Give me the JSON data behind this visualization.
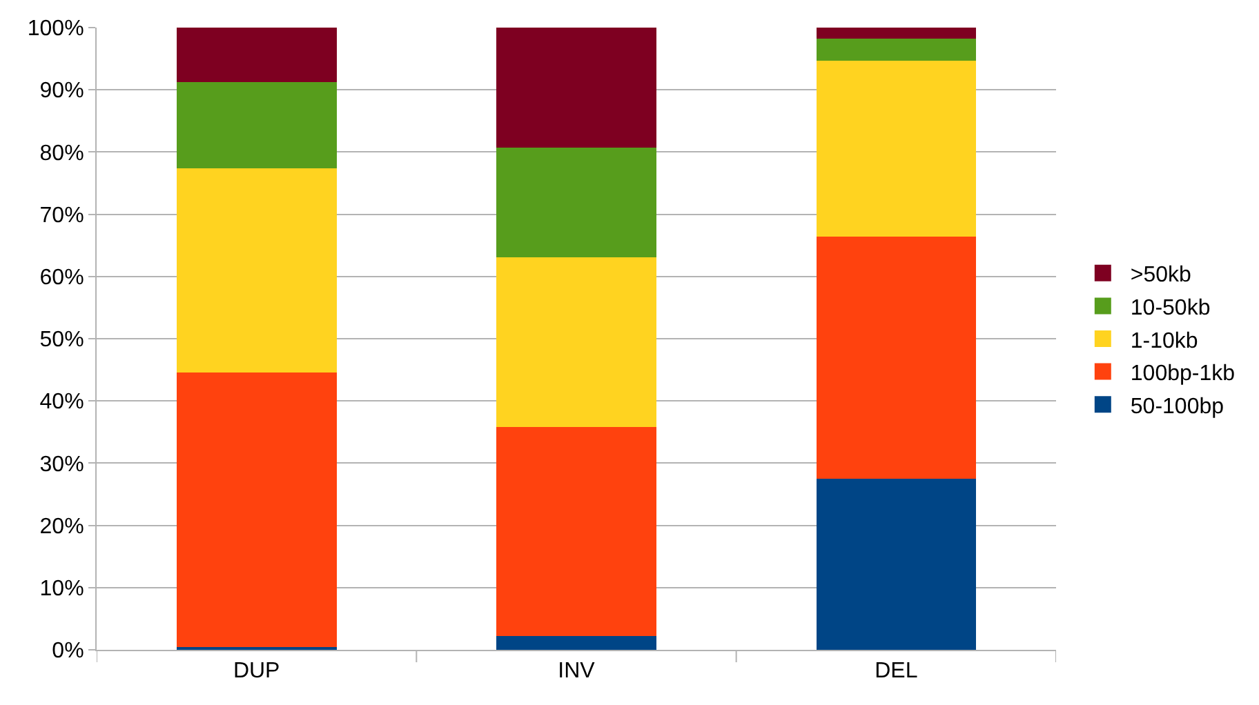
{
  "chart_data": {
    "type": "bar",
    "stacked": true,
    "categories": [
      "DUP",
      "INV",
      "DEL"
    ],
    "series": [
      {
        "name": "50-100bp",
        "color": "#004586",
        "values": [
          0.5,
          2.2,
          27.5
        ]
      },
      {
        "name": "100bp-1kb",
        "color": "#ff420e",
        "values": [
          44.1,
          33.6,
          38.9
        ]
      },
      {
        "name": "1-10kb",
        "color": "#ffd320",
        "values": [
          32.8,
          27.3,
          28.3
        ]
      },
      {
        "name": "10-50kb",
        "color": "#579d1c",
        "values": [
          13.8,
          17.6,
          3.5
        ]
      },
      {
        "name": ">50kb",
        "color": "#7e0021",
        "values": [
          8.8,
          19.3,
          1.8
        ]
      }
    ],
    "ylim": [
      0,
      100
    ],
    "yticks": [
      {
        "value": 0,
        "label": "0%"
      },
      {
        "value": 10,
        "label": "10%"
      },
      {
        "value": 20,
        "label": "20%"
      },
      {
        "value": 30,
        "label": "30%"
      },
      {
        "value": 40,
        "label": "40%"
      },
      {
        "value": 50,
        "label": "50%"
      },
      {
        "value": 60,
        "label": "60%"
      },
      {
        "value": 70,
        "label": "70%"
      },
      {
        "value": 80,
        "label": "80%"
      },
      {
        "value": 90,
        "label": "90%"
      },
      {
        "value": 100,
        "label": "100%"
      }
    ],
    "grid": "y",
    "legend": "right"
  }
}
